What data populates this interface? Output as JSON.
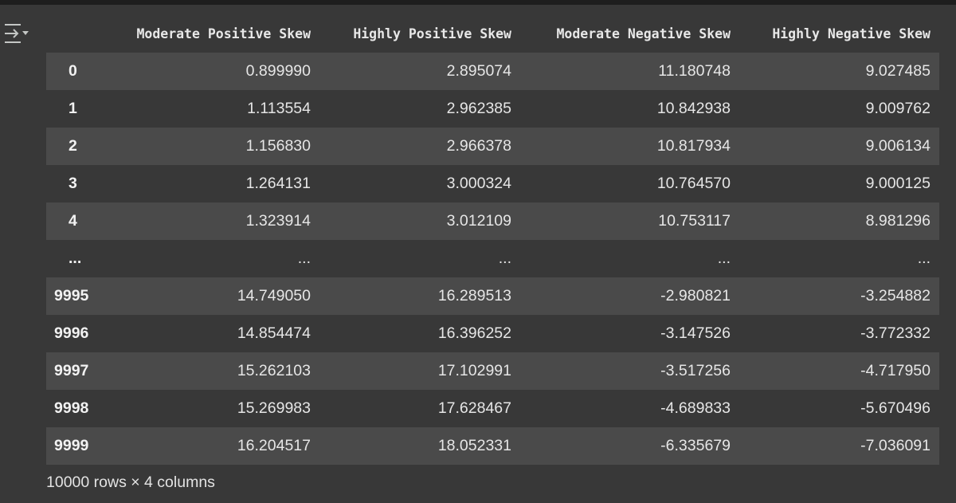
{
  "toolbar": {
    "output_icon": "collapse-output-icon"
  },
  "table": {
    "columns": [
      "",
      "Moderate Positive Skew",
      "Highly Positive Skew",
      "Moderate Negative Skew",
      "Highly Negative Skew"
    ],
    "rows": [
      [
        "0",
        "0.899990",
        "2.895074",
        "11.180748",
        "9.027485"
      ],
      [
        "1",
        "1.113554",
        "2.962385",
        "10.842938",
        "9.009762"
      ],
      [
        "2",
        "1.156830",
        "2.966378",
        "10.817934",
        "9.006134"
      ],
      [
        "3",
        "1.264131",
        "3.000324",
        "10.764570",
        "9.000125"
      ],
      [
        "4",
        "1.323914",
        "3.012109",
        "10.753117",
        "8.981296"
      ],
      [
        "...",
        "...",
        "...",
        "...",
        "..."
      ],
      [
        "9995",
        "14.749050",
        "16.289513",
        "-2.980821",
        "-3.254882"
      ],
      [
        "9996",
        "14.854474",
        "16.396252",
        "-3.147526",
        "-3.772332"
      ],
      [
        "9997",
        "15.262103",
        "17.102991",
        "-3.517256",
        "-4.717950"
      ],
      [
        "9998",
        "15.269983",
        "17.628467",
        "-4.689833",
        "-5.670496"
      ],
      [
        "9999",
        "16.204517",
        "18.052331",
        "-6.335679",
        "-7.036091"
      ]
    ]
  },
  "footer": {
    "shape_text": "10000 rows × 4 columns"
  }
}
